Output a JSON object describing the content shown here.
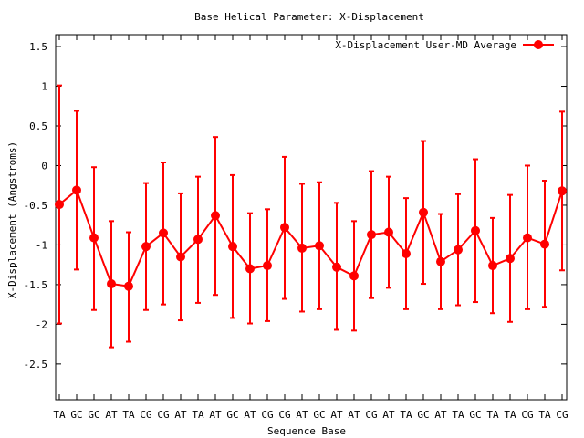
{
  "chart_data": {
    "type": "line",
    "title": "Base  Helical Parameter: X-Displacement",
    "xlabel": "Sequence Base",
    "ylabel": "X-Displacement (Angstroms)",
    "ylim": [
      -2.95,
      1.65
    ],
    "yticks": [
      1.5,
      1,
      0.5,
      0,
      -0.5,
      -1,
      -1.5,
      -2,
      -2.5
    ],
    "grid": false,
    "legend_position": "top-right",
    "categories": [
      "TA",
      "GC",
      "GC",
      "AT",
      "TA",
      "CG",
      "CG",
      "AT",
      "TA",
      "AT",
      "GC",
      "AT",
      "CG",
      "CG",
      "AT",
      "GC",
      "AT",
      "AT",
      "CG",
      "AT",
      "TA",
      "GC",
      "AT",
      "TA",
      "GC",
      "TA",
      "TA",
      "CG",
      "TA",
      "CG"
    ],
    "series": [
      {
        "name": "X-Displacement User-MD Average",
        "color": "#ff0000",
        "values": [
          -0.49,
          -0.31,
          -0.91,
          -1.49,
          -1.52,
          -1.02,
          -0.85,
          -1.15,
          -0.93,
          -0.63,
          -1.02,
          -1.3,
          -1.26,
          -0.78,
          -1.04,
          -1.01,
          -1.28,
          -1.39,
          -0.87,
          -0.84,
          -1.11,
          -0.59,
          -1.21,
          -1.06,
          -0.82,
          -1.26,
          -1.17,
          -0.91,
          -0.99,
          -0.32
        ],
        "err_high": [
          1.01,
          0.69,
          -0.02,
          -0.7,
          -0.84,
          -0.22,
          0.04,
          -0.35,
          -0.14,
          0.36,
          -0.12,
          -0.6,
          -0.55,
          0.11,
          -0.23,
          -0.21,
          -0.47,
          -0.7,
          -0.07,
          -0.14,
          -0.41,
          0.31,
          -0.61,
          -0.36,
          0.08,
          -0.66,
          -0.37,
          0.0,
          -0.19,
          0.68
        ],
        "err_low": [
          -1.99,
          -1.31,
          -1.82,
          -2.29,
          -2.22,
          -1.82,
          -1.75,
          -1.95,
          -1.73,
          -1.63,
          -1.92,
          -1.99,
          -1.96,
          -1.68,
          -1.84,
          -1.81,
          -2.07,
          -2.08,
          -1.67,
          -1.54,
          -1.81,
          -1.49,
          -1.81,
          -1.76,
          -1.72,
          -1.86,
          -1.97,
          -1.81,
          -1.78,
          -1.32
        ]
      }
    ]
  }
}
